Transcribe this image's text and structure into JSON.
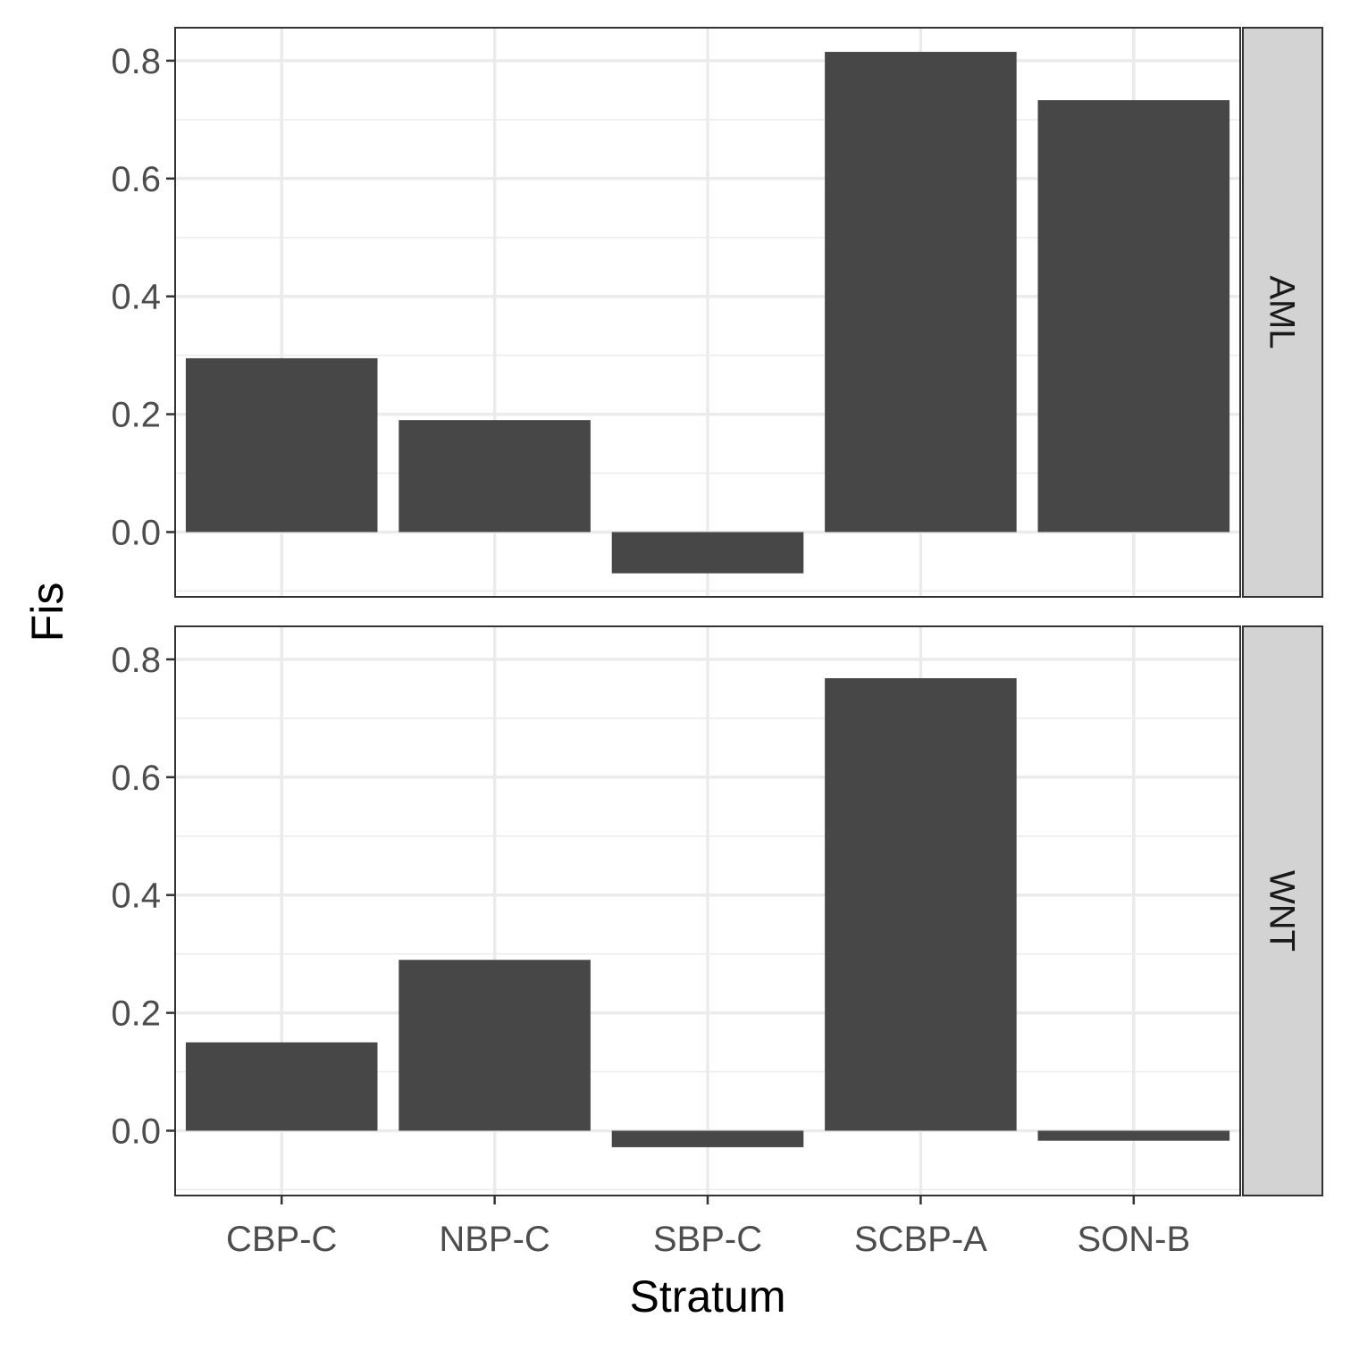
{
  "chart_data": {
    "type": "bar",
    "facet": "rows",
    "categories": [
      "CBP-C",
      "NBP-C",
      "SBP-C",
      "SCBP-A",
      "SON-B"
    ],
    "panels": [
      {
        "label": "AML",
        "values": [
          0.295,
          0.19,
          -0.07,
          0.815,
          0.733
        ]
      },
      {
        "label": "WNT",
        "values": [
          0.15,
          0.29,
          -0.028,
          0.768,
          -0.017
        ]
      }
    ],
    "xlabel": "Stratum",
    "ylabel": "Fis",
    "ylim": [
      -0.11,
      0.856
    ],
    "yticks": [
      0.0,
      0.2,
      0.4,
      0.6,
      0.8
    ],
    "ytick_labels": [
      "0.0",
      "0.2",
      "0.4",
      "0.6",
      "0.8"
    ],
    "grid": true,
    "legend": "none",
    "colors": {
      "bar": "#474747",
      "grid": "#ebebeb",
      "strip": "#d3d3d3",
      "border": "#333333"
    }
  }
}
